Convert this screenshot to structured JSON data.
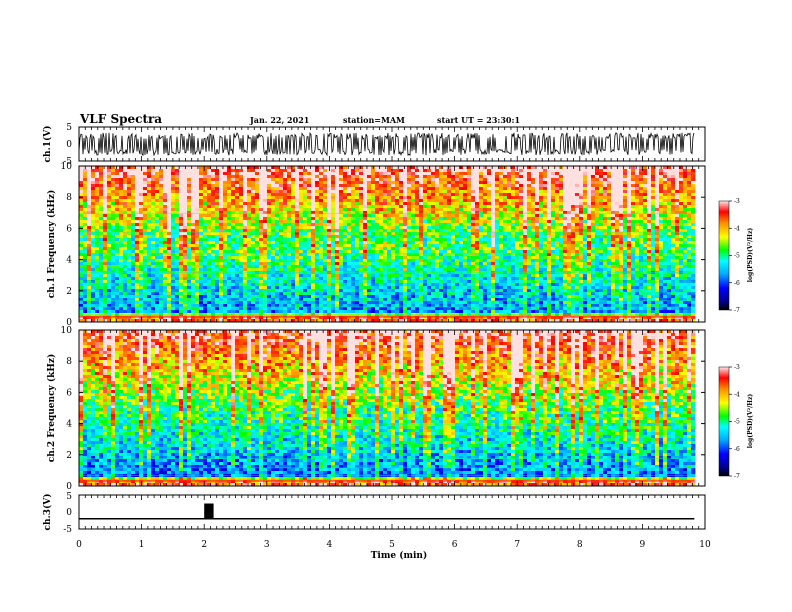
{
  "header": {
    "title": "VLF Spectra",
    "date": "Jan. 22, 2021",
    "station": "station=MAM",
    "start_ut": "start UT =  23:30:1"
  },
  "colors": {
    "spectrogram_colormap": [
      "#00008b",
      "#0000ff",
      "#00a0ff",
      "#00ffff",
      "#00ff00",
      "#ffff00",
      "#ff8c00",
      "#ff0000",
      "#ffe0e0"
    ],
    "trace": "#000000",
    "background": "#ffffff"
  },
  "chart_data": [
    {
      "type": "line",
      "name": "ch1-waveform",
      "ylabel": "ch.1(V)",
      "ylim": [
        -5,
        5
      ],
      "yticks": [
        "5",
        "0",
        "-5"
      ],
      "x_range_min": [
        0,
        9.83
      ],
      "description_values": "dense broadband signal filling roughly -3 to 3 V"
    },
    {
      "type": "heatmap",
      "name": "ch1-spectrogram",
      "ylabel": "ch.1 Frequency (kHz)",
      "ylim": [
        0,
        10
      ],
      "yticks": [
        "0",
        "2",
        "4",
        "6",
        "8",
        "10"
      ],
      "x_range_min": [
        0,
        9.83
      ],
      "colorbar": {
        "label": "log(PSD)(V²/Hz)",
        "range": [
          -7,
          -3
        ],
        "ticks": [
          "-3",
          "-4",
          "-5",
          "-6",
          "-7"
        ]
      }
    },
    {
      "type": "heatmap",
      "name": "ch2-spectrogram",
      "ylabel": "ch.2 Frequency (kHz)",
      "ylim": [
        0,
        10
      ],
      "yticks": [
        "0",
        "2",
        "4",
        "6",
        "8",
        "10"
      ],
      "x_range_min": [
        0,
        9.83
      ],
      "colorbar": {
        "label": "log(PSD)(V²/Hz)",
        "range": [
          -7,
          -3
        ],
        "ticks": [
          "-3",
          "-4",
          "-5",
          "-6",
          "-7"
        ]
      }
    },
    {
      "type": "line",
      "name": "ch3-waveform",
      "ylabel": "ch.3(V)",
      "ylim": [
        -5,
        5
      ],
      "yticks": [
        "5",
        "0",
        "-5"
      ],
      "x_range_min": [
        0,
        9.83
      ],
      "baseline": -2,
      "pulse": {
        "x_start": 2.0,
        "x_end": 2.15,
        "high": 2.5
      }
    }
  ],
  "xaxis": {
    "label": "Time (min)",
    "ticks": [
      "0",
      "1",
      "2",
      "3",
      "4",
      "5",
      "6",
      "7",
      "8",
      "9",
      "10"
    ],
    "range": [
      0,
      10
    ]
  }
}
